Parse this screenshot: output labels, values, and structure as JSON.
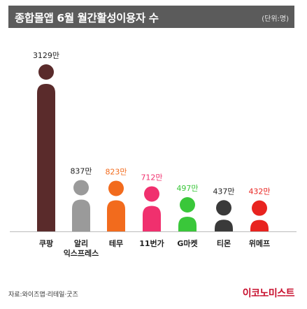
{
  "title": "종합몰앱 6월 월간활성이용자 수",
  "unit": "(단위:명)",
  "source": "자료:와이즈앱·리테일·굿즈",
  "brand": "이코노미스트",
  "colors": {
    "header_bg": "#5b5b5b",
    "baseline": "#bcbcbc",
    "logo": "#c8102e"
  },
  "chart_data": {
    "type": "bar",
    "style": "pictogram person figures whose height encodes the value",
    "categories": [
      "쿠팡",
      "알리\n익스프레스",
      "테무",
      "11번가",
      "G마켓",
      "티몬",
      "위메프"
    ],
    "values": [
      3129,
      837,
      823,
      712,
      497,
      437,
      432
    ],
    "value_labels": [
      "3129만",
      "837만",
      "823만",
      "712만",
      "497만",
      "437만",
      "432만"
    ],
    "colors": [
      "#5a2b2b",
      "#9a9a9a",
      "#f26b1d",
      "#f0306e",
      "#3ac73a",
      "#3a3a3a",
      "#e8231f"
    ],
    "label_colors": [
      "#222222",
      "#222222",
      "#f26b1d",
      "#f0306e",
      "#3ac73a",
      "#222222",
      "#e8231f"
    ],
    "ylim": [
      0,
      3129
    ],
    "grid": false,
    "legend": "none"
  }
}
